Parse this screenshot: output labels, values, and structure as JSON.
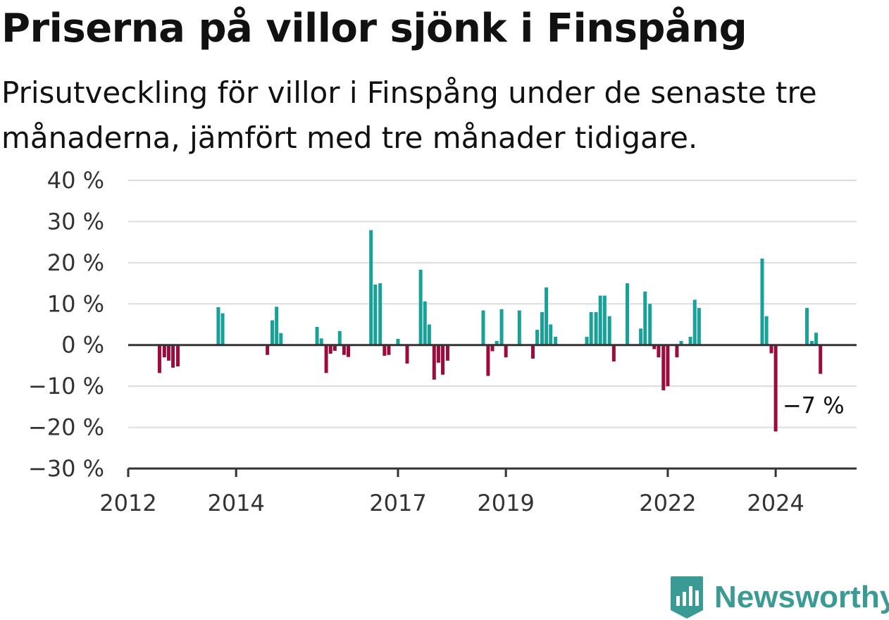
{
  "title": "Priserna på villor sjönk i Finspång",
  "subtitle": "Prisutveckling för villor i Finspång under de senaste tre månaderna, jämfört med tre månader tidigare.",
  "brand": {
    "name": "Newsworthy",
    "icon": "newsworthy-logo-icon",
    "color": "#3a9a94"
  },
  "colors": {
    "positive": "#17a199",
    "negative": "#9b0b3e",
    "grid": "#dddddd",
    "axis": "#333333"
  },
  "chart_data": {
    "type": "bar",
    "x_axis": {
      "range": [
        2012.0,
        2025.5
      ],
      "ticks": [
        2012,
        2014,
        2017,
        2019,
        2022,
        2024
      ],
      "tick_labels": [
        "2012",
        "2014",
        "2017",
        "2019",
        "2022",
        "2024"
      ]
    },
    "y_axis": {
      "range": [
        -30,
        40
      ],
      "ticks": [
        40,
        30,
        20,
        10,
        0,
        -10,
        -20,
        -30
      ],
      "tick_labels": [
        "40 %",
        "30 %",
        "20 %",
        "10 %",
        "0 %",
        "−10 %",
        "−20 %",
        "−30 %"
      ],
      "grid": true
    },
    "annotation": {
      "text": "−7 %",
      "x": 2024.7,
      "y": -7
    },
    "series": [
      {
        "points": [
          {
            "x": 2012.58,
            "y": -6.8
          },
          {
            "x": 2012.67,
            "y": -3.0
          },
          {
            "x": 2012.75,
            "y": -3.8
          },
          {
            "x": 2012.83,
            "y": -5.5
          },
          {
            "x": 2012.92,
            "y": -5.2
          },
          {
            "x": 2013.67,
            "y": 9.2
          },
          {
            "x": 2013.75,
            "y": 7.7
          },
          {
            "x": 2014.58,
            "y": -2.4
          },
          {
            "x": 2014.67,
            "y": 6.0
          },
          {
            "x": 2014.75,
            "y": 9.3
          },
          {
            "x": 2014.83,
            "y": 2.9
          },
          {
            "x": 2015.5,
            "y": 4.4
          },
          {
            "x": 2015.58,
            "y": 1.6
          },
          {
            "x": 2015.67,
            "y": -6.8
          },
          {
            "x": 2015.75,
            "y": -2.1
          },
          {
            "x": 2015.83,
            "y": -1.4
          },
          {
            "x": 2015.92,
            "y": 3.4
          },
          {
            "x": 2016.0,
            "y": -2.4
          },
          {
            "x": 2016.08,
            "y": -2.9
          },
          {
            "x": 2016.5,
            "y": 27.9
          },
          {
            "x": 2016.58,
            "y": 14.7
          },
          {
            "x": 2016.67,
            "y": 15.0
          },
          {
            "x": 2016.75,
            "y": -2.6
          },
          {
            "x": 2016.83,
            "y": -2.4
          },
          {
            "x": 2017.0,
            "y": 1.5
          },
          {
            "x": 2017.17,
            "y": -4.5
          },
          {
            "x": 2017.42,
            "y": 18.3
          },
          {
            "x": 2017.5,
            "y": 10.6
          },
          {
            "x": 2017.58,
            "y": 5.0
          },
          {
            "x": 2017.67,
            "y": -8.4
          },
          {
            "x": 2017.75,
            "y": -4.3
          },
          {
            "x": 2017.83,
            "y": -7.2
          },
          {
            "x": 2017.92,
            "y": -3.8
          },
          {
            "x": 2018.58,
            "y": 8.4
          },
          {
            "x": 2018.67,
            "y": -7.5
          },
          {
            "x": 2018.75,
            "y": -1.5
          },
          {
            "x": 2018.83,
            "y": 1.0
          },
          {
            "x": 2018.92,
            "y": 8.7
          },
          {
            "x": 2019.0,
            "y": -3.0
          },
          {
            "x": 2019.25,
            "y": 8.4
          },
          {
            "x": 2019.5,
            "y": -3.3
          },
          {
            "x": 2019.58,
            "y": 3.7
          },
          {
            "x": 2019.67,
            "y": 8.0
          },
          {
            "x": 2019.75,
            "y": 14.0
          },
          {
            "x": 2019.83,
            "y": 5.0
          },
          {
            "x": 2019.92,
            "y": 2.0
          },
          {
            "x": 2020.5,
            "y": 2.0
          },
          {
            "x": 2020.58,
            "y": 8.0
          },
          {
            "x": 2020.67,
            "y": 8.0
          },
          {
            "x": 2020.75,
            "y": 12.0
          },
          {
            "x": 2020.83,
            "y": 12.0
          },
          {
            "x": 2020.92,
            "y": 7.0
          },
          {
            "x": 2021.0,
            "y": -4.0
          },
          {
            "x": 2021.25,
            "y": 15.0
          },
          {
            "x": 2021.5,
            "y": 4.0
          },
          {
            "x": 2021.58,
            "y": 13.0
          },
          {
            "x": 2021.67,
            "y": 10.0
          },
          {
            "x": 2021.75,
            "y": -1.0
          },
          {
            "x": 2021.83,
            "y": -3.0
          },
          {
            "x": 2021.92,
            "y": -11.0
          },
          {
            "x": 2022.0,
            "y": -10.0
          },
          {
            "x": 2022.17,
            "y": -3.0
          },
          {
            "x": 2022.25,
            "y": 1.0
          },
          {
            "x": 2022.42,
            "y": 2.0
          },
          {
            "x": 2022.5,
            "y": 11.0
          },
          {
            "x": 2022.58,
            "y": 9.0
          },
          {
            "x": 2023.75,
            "y": 21.0
          },
          {
            "x": 2023.83,
            "y": 7.0
          },
          {
            "x": 2023.92,
            "y": -2.0
          },
          {
            "x": 2024.0,
            "y": -21.0
          },
          {
            "x": 2024.58,
            "y": 9.0
          },
          {
            "x": 2024.67,
            "y": 1.0
          },
          {
            "x": 2024.75,
            "y": 3.0
          },
          {
            "x": 2024.83,
            "y": -7.0
          }
        ]
      }
    ]
  }
}
